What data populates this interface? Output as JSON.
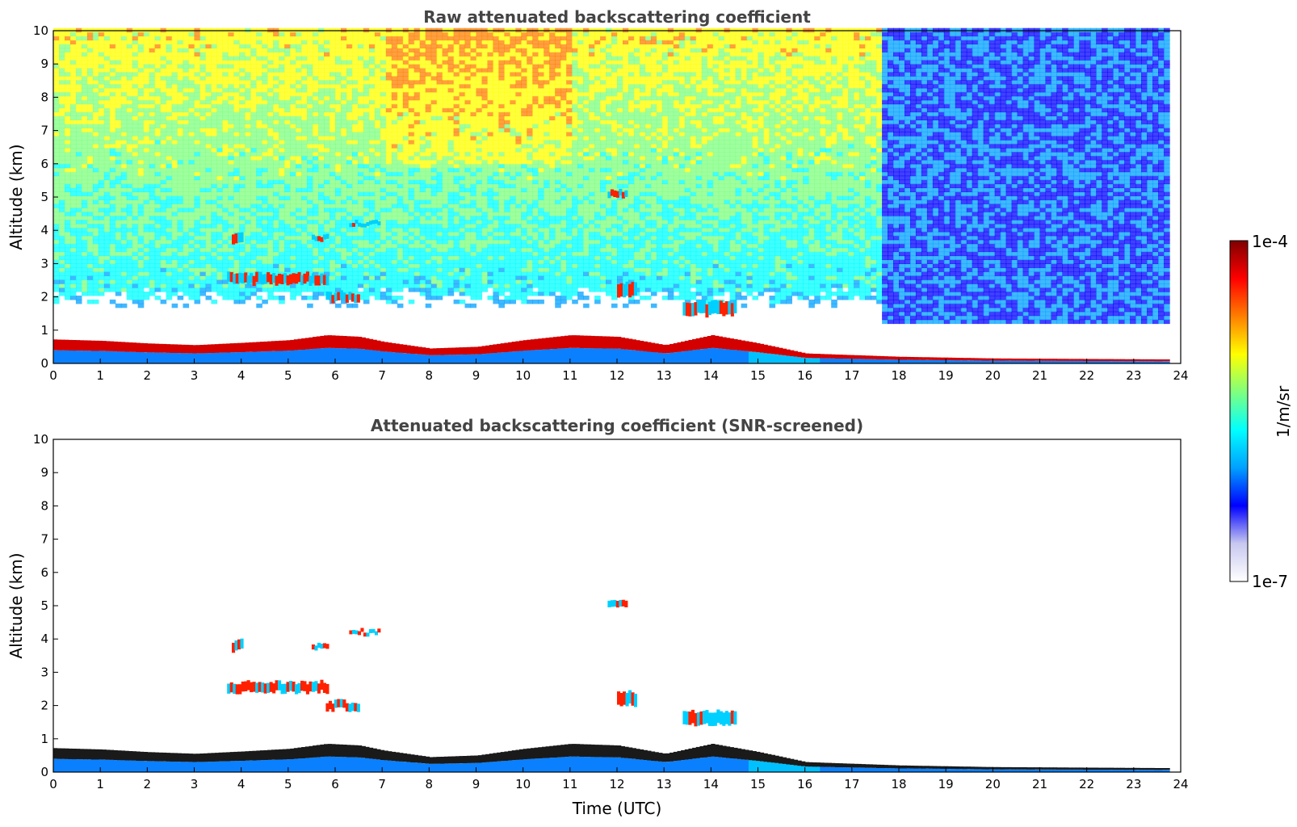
{
  "chart_data": [
    {
      "type": "heatmap",
      "title": "Raw attenuated backscattering coefficient",
      "xlabel": "",
      "ylabel": "Altitude (km)",
      "xlim": [
        0,
        24
      ],
      "ylim": [
        0,
        10
      ],
      "xticks": [
        0,
        1,
        2,
        3,
        4,
        5,
        6,
        7,
        8,
        9,
        10,
        11,
        12,
        13,
        14,
        15,
        16,
        17,
        18,
        19,
        20,
        21,
        22,
        23,
        24
      ],
      "yticks": [
        0,
        1,
        2,
        3,
        4,
        5,
        6,
        7,
        8,
        9,
        10
      ],
      "data_end_hour": 23.7,
      "boundary_layer_top_km": [
        [
          0,
          0.72
        ],
        [
          1,
          0.68
        ],
        [
          2,
          0.6
        ],
        [
          3,
          0.55
        ],
        [
          4,
          0.62
        ],
        [
          5,
          0.7
        ],
        [
          5.8,
          0.85
        ],
        [
          6.5,
          0.8
        ],
        [
          7,
          0.65
        ],
        [
          8,
          0.45
        ],
        [
          9,
          0.5
        ],
        [
          10,
          0.7
        ],
        [
          11,
          0.85
        ],
        [
          12,
          0.8
        ],
        [
          13,
          0.55
        ],
        [
          14,
          0.85
        ],
        [
          15,
          0.6
        ],
        [
          16,
          0.3
        ],
        [
          17,
          0.25
        ],
        [
          18,
          0.2
        ],
        [
          20,
          0.15
        ],
        [
          23.7,
          0.12
        ]
      ],
      "cloud_layers": [
        {
          "x0": 3.7,
          "x1": 5.8,
          "y": 2.55,
          "thickness": 0.3
        },
        {
          "x0": 5.8,
          "x1": 6.5,
          "y": 2.0,
          "thickness": 0.25
        },
        {
          "x0": 5.5,
          "x1": 5.8,
          "y": 3.75,
          "thickness": 0.15
        },
        {
          "x0": 6.3,
          "x1": 6.9,
          "y": 4.2,
          "thickness": 0.12
        },
        {
          "x0": 3.8,
          "x1": 4.0,
          "y": 3.8,
          "thickness": 0.3
        },
        {
          "x0": 11.8,
          "x1": 12.2,
          "y": 5.1,
          "thickness": 0.2
        },
        {
          "x0": 12.0,
          "x1": 12.4,
          "y": 2.2,
          "thickness": 0.4
        },
        {
          "x0": 13.4,
          "x1": 14.5,
          "y": 1.65,
          "thickness": 0.4
        }
      ]
    },
    {
      "type": "heatmap",
      "title": "Attenuated backscattering coefficient (SNR-screened)",
      "xlabel": "Time (UTC)",
      "ylabel": "Altitude (km)",
      "xlim": [
        0,
        24
      ],
      "ylim": [
        0,
        10
      ],
      "xticks": [
        0,
        1,
        2,
        3,
        4,
        5,
        6,
        7,
        8,
        9,
        10,
        11,
        12,
        13,
        14,
        15,
        16,
        17,
        18,
        19,
        20,
        21,
        22,
        23,
        24
      ],
      "yticks": [
        0,
        1,
        2,
        3,
        4,
        5,
        6,
        7,
        8,
        9,
        10
      ],
      "data_end_hour": 23.7
    }
  ],
  "colorbar": {
    "label": "1/m/sr",
    "max_label": "1e-4",
    "min_label": "1e-7",
    "colormap": "jet",
    "stops": [
      "#ffffff",
      "#c8c8f0",
      "#0000ff",
      "#00a0ff",
      "#00ffff",
      "#7fff7f",
      "#ffff00",
      "#ff7f00",
      "#ff0000",
      "#7f0000"
    ]
  }
}
